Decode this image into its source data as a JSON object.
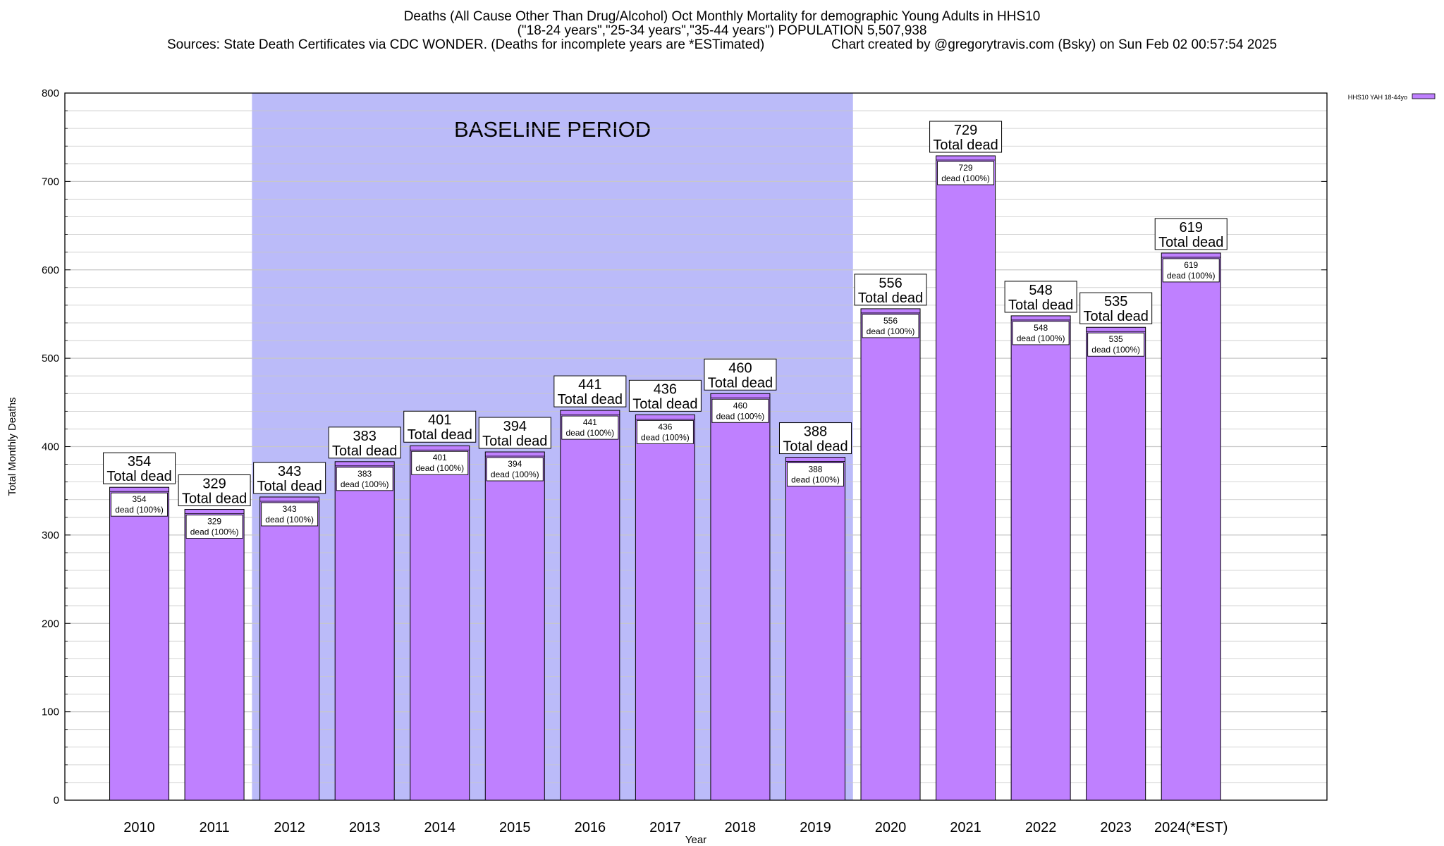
{
  "title_lines": [
    "Deaths (All Cause Other Than Drug/Alcohol) Oct Monthly Mortality for demographic Young Adults in HHS10",
    "(\"18-24 years\",\"25-34 years\",\"35-44 years\") POPULATION 5,507,938",
    "Sources: State Death Certificates via CDC WONDER. (Deaths for incomplete years are *ESTimated)                  Chart created by @gregorytravis.com (Bsky) on Sun Feb 02 00:57:54 2025"
  ],
  "colors": {
    "bar": "#bf80ff",
    "baseline_shade": "#bbbbf9",
    "grid": "#c8c8c8"
  },
  "chart_data": {
    "type": "bar",
    "title": "Deaths (All Cause Other Than Drug/Alcohol) Oct Monthly Mortality for demographic Young Adults in HHS10",
    "xlabel": "Year",
    "ylabel": "Total Monthly Deaths",
    "ylim": [
      0,
      800
    ],
    "yticks": [
      0,
      100,
      200,
      300,
      400,
      500,
      600,
      700,
      800
    ],
    "grid": true,
    "legend": {
      "placement": "top-right",
      "entries": [
        "HHS10 YAH 18-44yo"
      ]
    },
    "categories": [
      "2010",
      "2011",
      "2012",
      "2013",
      "2014",
      "2015",
      "2016",
      "2017",
      "2018",
      "2019",
      "2020",
      "2021",
      "2022",
      "2023",
      "2024(*EST)"
    ],
    "series": [
      {
        "name": "HHS10 YAH 18-44yo",
        "values": [
          354,
          329,
          343,
          383,
          401,
          394,
          441,
          436,
          460,
          388,
          556,
          729,
          548,
          535,
          619
        ]
      }
    ],
    "total_label": "Total dead",
    "inner_label": "dead (100%)",
    "baseline": {
      "label": "BASELINE PERIOD",
      "from": "2012",
      "to": "2019"
    }
  }
}
